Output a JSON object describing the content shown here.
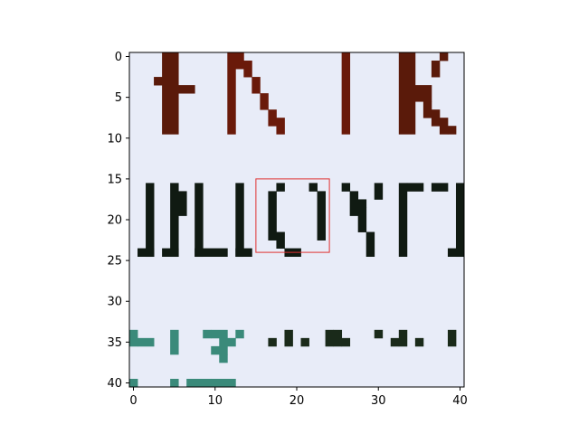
{
  "chart_data": {
    "type": "heatmap",
    "image_grid": "41x41 pixels",
    "x_ticks": [
      0,
      10,
      20,
      30,
      40
    ],
    "y_ticks": [
      0,
      5,
      10,
      15,
      20,
      25,
      30,
      35,
      40
    ],
    "xlim": [
      -0.5,
      40.5
    ],
    "ylim": [
      40.5,
      -0.5
    ],
    "y_axis_inverted": true,
    "grid": false,
    "background_color": "#e8ecf8",
    "highlight_box": {
      "x": [
        15,
        24
      ],
      "y": [
        15,
        24
      ],
      "color": "#e03030"
    },
    "strokes": [
      {
        "name": "top-letter-1",
        "color": "#5a1a0a",
        "rects": [
          [
            4,
            0,
            2,
            10
          ],
          [
            5,
            4,
            3,
            1
          ],
          [
            3,
            3,
            1,
            1
          ]
        ]
      },
      {
        "name": "top-letter-2",
        "color": "#6a1a0a",
        "rects": [
          [
            12,
            0,
            1,
            10
          ],
          [
            13,
            0,
            1,
            2
          ],
          [
            14,
            1,
            1,
            2
          ],
          [
            15,
            3,
            1,
            2
          ],
          [
            16,
            5,
            1,
            2
          ],
          [
            17,
            7,
            1,
            2
          ],
          [
            18,
            8,
            1,
            2
          ],
          [
            26,
            0,
            1,
            10
          ]
        ]
      },
      {
        "name": "top-letter-3",
        "color": "#5a1a0a",
        "rects": [
          [
            33,
            0,
            2,
            10
          ],
          [
            35,
            4,
            2,
            2
          ],
          [
            36,
            6,
            1,
            2
          ],
          [
            37,
            7,
            1,
            2
          ],
          [
            38,
            8,
            1,
            2
          ],
          [
            39,
            9,
            1,
            1
          ],
          [
            37,
            1,
            1,
            2
          ],
          [
            38,
            0,
            1,
            1
          ]
        ]
      },
      {
        "name": "mid-letter-P",
        "color": "#101a12",
        "rects": [
          [
            2,
            16,
            1,
            9
          ],
          [
            5,
            16,
            1,
            9
          ],
          [
            6,
            17,
            1,
            3
          ],
          [
            1,
            24,
            2,
            1
          ],
          [
            4,
            24,
            2,
            1
          ]
        ]
      },
      {
        "name": "mid-letter-L",
        "color": "#101a12",
        "rects": [
          [
            8,
            16,
            1,
            9
          ],
          [
            8,
            24,
            4,
            1
          ],
          [
            13,
            16,
            1,
            9
          ],
          [
            13,
            24,
            2,
            1
          ]
        ]
      },
      {
        "name": "mid-letter-O",
        "color": "#101a12",
        "rects": [
          [
            17,
            17,
            1,
            6
          ],
          [
            18,
            16,
            1,
            1
          ],
          [
            18,
            22,
            1,
            2
          ],
          [
            19,
            24,
            2,
            1
          ],
          [
            23,
            17,
            1,
            6
          ],
          [
            22,
            16,
            1,
            1
          ]
        ]
      },
      {
        "name": "mid-letter-K",
        "color": "#101a12",
        "rects": [
          [
            26,
            16,
            1,
            1
          ],
          [
            27,
            17,
            1,
            3
          ],
          [
            28,
            19,
            1,
            3
          ],
          [
            29,
            22,
            1,
            3
          ],
          [
            30,
            16,
            1,
            2
          ],
          [
            28,
            18,
            1,
            1
          ]
        ]
      },
      {
        "name": "mid-letter-T",
        "color": "#101a12",
        "rects": [
          [
            33,
            16,
            1,
            9
          ],
          [
            34,
            16,
            2,
            1
          ],
          [
            37,
            16,
            2,
            1
          ],
          [
            40,
            16,
            1,
            9
          ],
          [
            39,
            24,
            2,
            1
          ]
        ]
      },
      {
        "name": "bottom-letter-green",
        "color": "#3a8a7a",
        "rects": [
          [
            0,
            34,
            1,
            2
          ],
          [
            1,
            35,
            2,
            1
          ],
          [
            5,
            34,
            1,
            3
          ],
          [
            9,
            34,
            1,
            1
          ],
          [
            10,
            34,
            2,
            1
          ],
          [
            11,
            35,
            1,
            2
          ],
          [
            12,
            35,
            1,
            1
          ],
          [
            13,
            34,
            1,
            1
          ],
          [
            10,
            36,
            1,
            1
          ],
          [
            11,
            37,
            1,
            1
          ],
          [
            0,
            40,
            1,
            1
          ],
          [
            5,
            40,
            1,
            1
          ],
          [
            7,
            40,
            3,
            1
          ],
          [
            10,
            40,
            3,
            1
          ]
        ]
      },
      {
        "name": "bottom-letter-dark",
        "color": "#1a2a1a",
        "rects": [
          [
            17,
            35,
            1,
            1
          ],
          [
            19,
            34,
            1,
            2
          ],
          [
            21,
            35,
            1,
            1
          ],
          [
            24,
            34,
            1,
            2
          ],
          [
            25,
            34,
            1,
            2
          ],
          [
            26,
            35,
            1,
            1
          ],
          [
            30,
            34,
            1,
            1
          ],
          [
            32,
            35,
            1,
            1
          ],
          [
            33,
            34,
            1,
            2
          ],
          [
            35,
            35,
            1,
            1
          ],
          [
            39,
            34,
            1,
            2
          ]
        ]
      }
    ]
  }
}
